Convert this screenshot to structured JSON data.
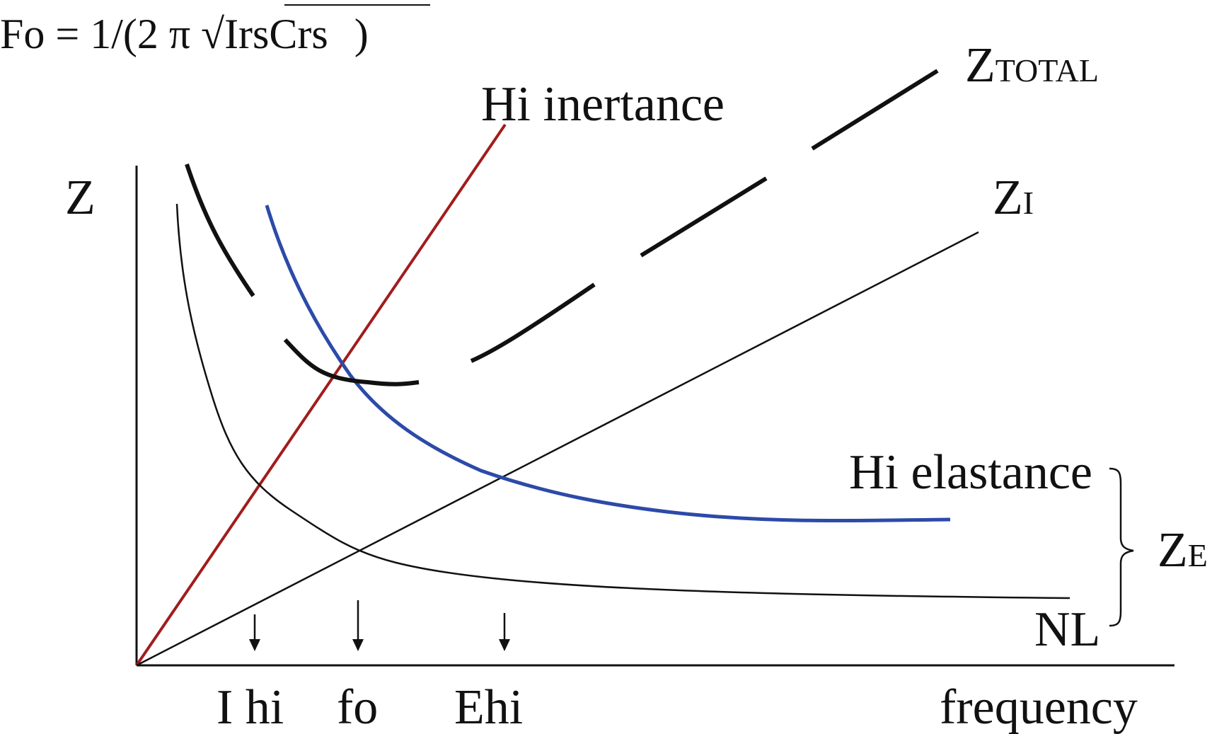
{
  "formula": {
    "prefix": "Fo = 1/(2 π √IrsCrs",
    "suffix": ")"
  },
  "axes": {
    "y_label": "Z",
    "x_label": "frequency"
  },
  "curves": {
    "total": {
      "main": "Z",
      "sub": "TOTAL"
    },
    "inertance": {
      "main": "Z",
      "sub": "I"
    },
    "hi_inertance": "Hi inertance",
    "hi_elastance": "Hi elastance",
    "normal": "NL",
    "elastance": {
      "main": "Z",
      "sub": "E"
    }
  },
  "markers": [
    "I hi",
    "fo",
    "Ehi"
  ],
  "colors": {
    "black": "#111111",
    "red": "#a11c1c",
    "blue": "#2c4aa8"
  }
}
